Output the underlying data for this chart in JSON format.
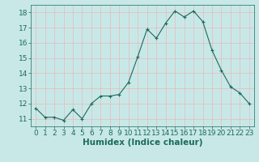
{
  "x": [
    0,
    1,
    2,
    3,
    4,
    5,
    6,
    7,
    8,
    9,
    10,
    11,
    12,
    13,
    14,
    15,
    16,
    17,
    18,
    19,
    20,
    21,
    22,
    23
  ],
  "y": [
    11.7,
    11.1,
    11.1,
    10.9,
    11.6,
    11.0,
    12.0,
    12.5,
    12.5,
    12.6,
    13.4,
    15.1,
    16.9,
    16.3,
    17.3,
    18.1,
    17.7,
    18.1,
    17.4,
    15.5,
    14.2,
    13.1,
    12.7,
    12.0
  ],
  "line_color": "#1a6b5a",
  "marker_color": "#1a6b5a",
  "bg_color": "#c8e8e8",
  "grid_color": "#e8b8b8",
  "xlabel": "Humidex (Indice chaleur)",
  "xlim": [
    -0.5,
    23.5
  ],
  "ylim": [
    10.5,
    18.5
  ],
  "yticks": [
    11,
    12,
    13,
    14,
    15,
    16,
    17,
    18
  ],
  "xticks": [
    0,
    1,
    2,
    3,
    4,
    5,
    6,
    7,
    8,
    9,
    10,
    11,
    12,
    13,
    14,
    15,
    16,
    17,
    18,
    19,
    20,
    21,
    22,
    23
  ],
  "tick_color": "#1a6b5a",
  "xlabel_color": "#1a6b5a",
  "font_size": 6.5,
  "label_font_size": 7.5
}
